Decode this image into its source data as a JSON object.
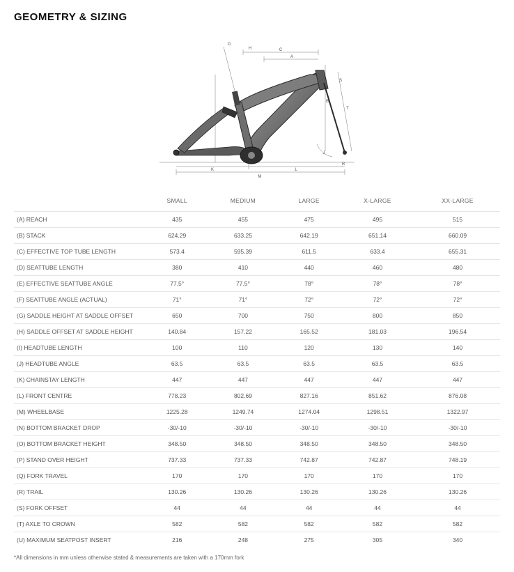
{
  "title": "GEOMETRY & SIZING",
  "columns": [
    "",
    "SMALL",
    "MEDIUM",
    "LARGE",
    "X-LARGE",
    "XX-LARGE"
  ],
  "rows": [
    {
      "label": "(A) REACH",
      "cells": [
        "435",
        "455",
        "475",
        "495",
        "515"
      ]
    },
    {
      "label": "(B) STACK",
      "cells": [
        "624.29",
        "633.25",
        "642.19",
        "651.14",
        "660.09"
      ]
    },
    {
      "label": "(C) EFFECTIVE TOP TUBE LENGTH",
      "cells": [
        "573.4",
        "595.39",
        "611.5",
        "633.4",
        "655.31"
      ]
    },
    {
      "label": "(D) SEATTUBE LENGTH",
      "cells": [
        "380",
        "410",
        "440",
        "460",
        "480"
      ]
    },
    {
      "label": "(E) EFFECTIVE SEATTUBE ANGLE",
      "cells": [
        "77.5°",
        "77.5°",
        "78°",
        "78°",
        "78°"
      ]
    },
    {
      "label": "(F) SEATTUBE ANGLE (ACTUAL)",
      "cells": [
        "71°",
        "71°",
        "72°",
        "72°",
        "72°"
      ]
    },
    {
      "label": "(G) SADDLE HEIGHT AT SADDLE OFFSET",
      "cells": [
        "650",
        "700",
        "750",
        "800",
        "850"
      ]
    },
    {
      "label": "(H) SADDLE OFFSET AT SADDLE HEIGHT",
      "cells": [
        "140.84",
        "157.22",
        "165.52",
        "181.03",
        "196.54"
      ]
    },
    {
      "label": "(I) HEADTUBE LENGTH",
      "cells": [
        "100",
        "110",
        "120",
        "130",
        "140"
      ]
    },
    {
      "label": "(J) HEADTUBE ANGLE",
      "cells": [
        "63.5",
        "63.5",
        "63.5",
        "63.5",
        "63.5"
      ]
    },
    {
      "label": "(K) CHAINSTAY LENGTH",
      "cells": [
        "447",
        "447",
        "447",
        "447",
        "447"
      ]
    },
    {
      "label": "(L) FRONT CENTRE",
      "cells": [
        "778.23",
        "802.69",
        "827.16",
        "851.62",
        "876.08"
      ]
    },
    {
      "label": "(M) WHEELBASE",
      "cells": [
        "1225.28",
        "1249.74",
        "1274.04",
        "1298.51",
        "1322.97"
      ]
    },
    {
      "label": "(N) BOTTOM BRACKET DROP",
      "cells": [
        "-30/-10",
        "-30/-10",
        "-30/-10",
        "-30/-10",
        "-30/-10"
      ]
    },
    {
      "label": "(O) BOTTOM BRACKET HEIGHT",
      "cells": [
        "348.50",
        "348.50",
        "348.50",
        "348.50",
        "348.50"
      ]
    },
    {
      "label": "(P) STAND OVER HEIGHT",
      "cells": [
        "737.33",
        "737.33",
        "742.87",
        "742.87",
        "748.19"
      ]
    },
    {
      "label": "(Q) FORK TRAVEL",
      "cells": [
        "170",
        "170",
        "170",
        "170",
        "170"
      ]
    },
    {
      "label": "(R) TRAIL",
      "cells": [
        "130.26",
        "130.26",
        "130.26",
        "130.26",
        "130.26"
      ]
    },
    {
      "label": "(S) FORK OFFSET",
      "cells": [
        "44",
        "44",
        "44",
        "44",
        "44"
      ]
    },
    {
      "label": "(T) AXLE TO CROWN",
      "cells": [
        "582",
        "582",
        "582",
        "582",
        "582"
      ]
    },
    {
      "label": "(U) MAXIMUM SEATPOST INSERT",
      "cells": [
        "216",
        "248",
        "275",
        "305",
        "340"
      ]
    }
  ],
  "footnote": "*All dimensions in mm unless otherwise stated & measurements are taken with a 170mm fork",
  "diagram": {
    "stroke_frame": "#2a2a2a",
    "fill_frame_light": "#8f8f8f",
    "fill_frame_dark": "#3a3a3a",
    "dim_line": "#777777",
    "dim_text": "#555555",
    "bg": "#ffffff",
    "labels": [
      "A",
      "B",
      "C",
      "D",
      "E",
      "F",
      "G",
      "H",
      "I",
      "J",
      "K",
      "L",
      "M",
      "N",
      "O",
      "P",
      "Q",
      "R",
      "S",
      "T",
      "U"
    ]
  }
}
